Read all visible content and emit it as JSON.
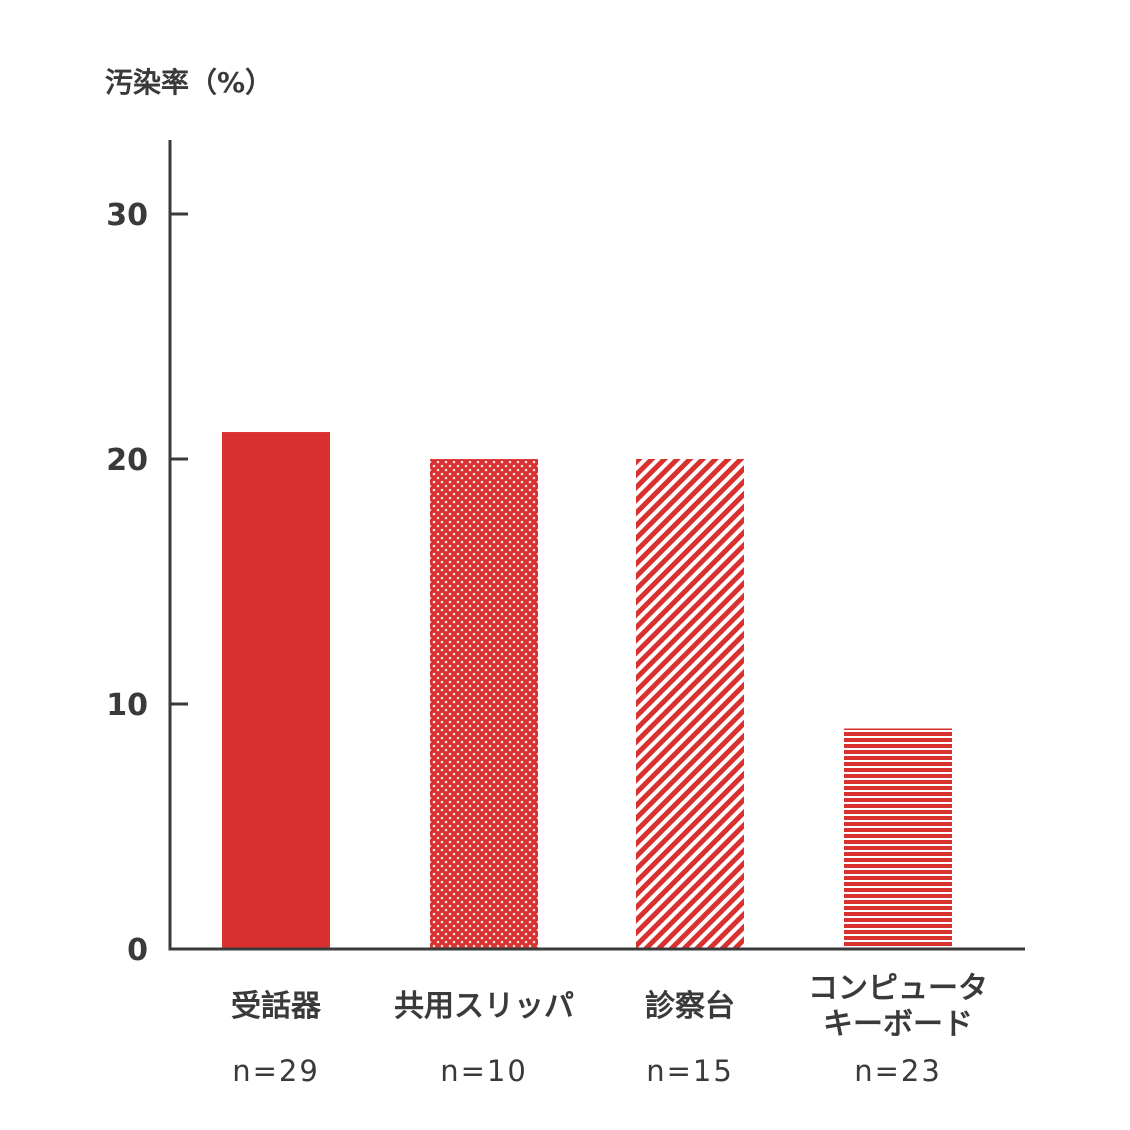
{
  "chart_data": {
    "type": "bar",
    "title": "",
    "xlabel": "",
    "ylabel": "汚染率（%）",
    "ylim": [
      0,
      33
    ],
    "yticks": [
      0,
      10,
      20,
      30
    ],
    "grid": false,
    "categories": [
      [
        "受話器"
      ],
      [
        "共用スリッパ"
      ],
      [
        "診察台"
      ],
      [
        "コンピュータ",
        "キーボード"
      ]
    ],
    "sample_sizes": [
      "n=29",
      "n=10",
      "n=15",
      "n=23"
    ],
    "values": [
      21.1,
      20.0,
      20.0,
      9.0
    ],
    "bar_fills": [
      "solid",
      "dots",
      "diagonal-stripes",
      "horizontal-stripes"
    ],
    "colors": {
      "bar": "#d93030",
      "axis": "#3a3a3a",
      "text": "#3a3a3a"
    }
  }
}
